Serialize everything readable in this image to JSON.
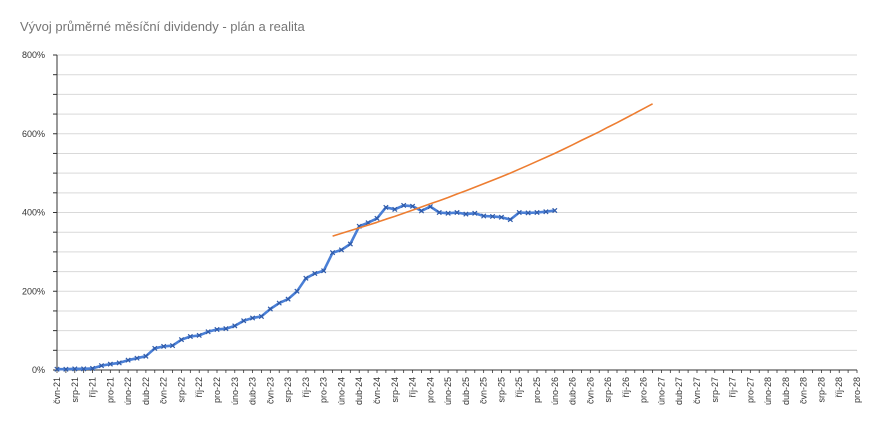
{
  "chart_data": {
    "type": "line",
    "title": "Vývoj průměrné měsíční dividendy - plán a realita",
    "xlabel": "",
    "ylabel": "",
    "ylim": [
      0,
      800
    ],
    "y_ticks": [
      "0%",
      "200%",
      "400%",
      "600%",
      "800%"
    ],
    "y_tick_values": [
      0,
      200,
      400,
      600,
      800
    ],
    "grid": "horizontal",
    "x_categories": [
      "čvn-21",
      "čvc-21",
      "srp-21",
      "zář-21",
      "říj-21",
      "lis-21",
      "pro-21",
      "led-22",
      "úno-22",
      "bře-22",
      "dub-22",
      "kvě-22",
      "čvn-22",
      "čvc-22",
      "srp-22",
      "zář-22",
      "říj-22",
      "lis-22",
      "pro-22",
      "led-23",
      "úno-23",
      "bře-23",
      "dub-23",
      "kvě-23",
      "čvn-23",
      "čvc-23",
      "srp-23",
      "zář-23",
      "říj-23",
      "lis-23",
      "pro-23",
      "led-24",
      "úno-24",
      "bře-24",
      "dub-24",
      "kvě-24",
      "čvn-24",
      "čvc-24",
      "srp-24",
      "zář-24",
      "říj-24",
      "lis-24",
      "pro-24",
      "led-25",
      "úno-25",
      "bře-25",
      "dub-25",
      "kvě-25",
      "čvn-25",
      "čvc-25",
      "srp-25",
      "zář-25",
      "říj-25",
      "lis-25",
      "pro-25",
      "led-26",
      "úno-26",
      "bře-26",
      "dub-26",
      "kvě-26",
      "čvn-26",
      "čvc-26",
      "srp-26",
      "zář-26",
      "říj-26",
      "lis-26",
      "pro-26",
      "led-27",
      "úno-27",
      "bře-27",
      "dub-27",
      "kvě-27",
      "čvn-27",
      "čvc-27",
      "srp-27",
      "zář-27",
      "říj-27",
      "lis-27",
      "pro-27",
      "led-28",
      "úno-28",
      "bře-28",
      "dub-28",
      "kvě-28",
      "čvn-28",
      "čvc-28",
      "srp-28",
      "zář-28",
      "říj-28",
      "lis-28",
      "pro-28"
    ],
    "x_tick_labels": [
      "čvn-21",
      "srp-21",
      "říj-21",
      "pro-21",
      "úno-22",
      "dub-22",
      "čvn-22",
      "srp-22",
      "říj-22",
      "pro-22",
      "úno-23",
      "dub-23",
      "čvn-23",
      "srp-23",
      "říj-23",
      "pro-23",
      "úno-24",
      "dub-24",
      "čvn-24",
      "srp-24",
      "říj-24",
      "pro-24",
      "úno-25",
      "dub-25",
      "čvn-25",
      "srp-25",
      "říj-25",
      "pro-25",
      "úno-26",
      "dub-26",
      "čvn-26",
      "srp-26",
      "říj-26",
      "pro-26",
      "úno-27",
      "dub-27",
      "čvn-27",
      "srp-27",
      "říj-27",
      "pro-27",
      "úno-28",
      "dub-28",
      "čvn-28",
      "srp-28",
      "říj-28",
      "pro-28"
    ],
    "series": [
      {
        "color": "#4a7fd6",
        "start_category": "čvn-21",
        "values": [
          2,
          2,
          3,
          3,
          4,
          11,
          15,
          18,
          25,
          30,
          35,
          55,
          60,
          62,
          77,
          85,
          88,
          97,
          103,
          105,
          112,
          125,
          132,
          136,
          155,
          170,
          180,
          200,
          233,
          245,
          252,
          298,
          305,
          320,
          365,
          374,
          385,
          413,
          408,
          418,
          416,
          404,
          415,
          400,
          398,
          400,
          396,
          398,
          391,
          390,
          388,
          382,
          400,
          399,
          400,
          402,
          405
        ]
      },
      {
        "color": "#ed7d31",
        "start_category": "led-24",
        "values": [
          340,
          347,
          354,
          361,
          368,
          375,
          383,
          390,
          398,
          406,
          414,
          422,
          430,
          438,
          447,
          455,
          464,
          473,
          482,
          491,
          500,
          510,
          520,
          530,
          540,
          550,
          561,
          572,
          583,
          594,
          605,
          617,
          628,
          640,
          652,
          664,
          676
        ]
      }
    ]
  }
}
